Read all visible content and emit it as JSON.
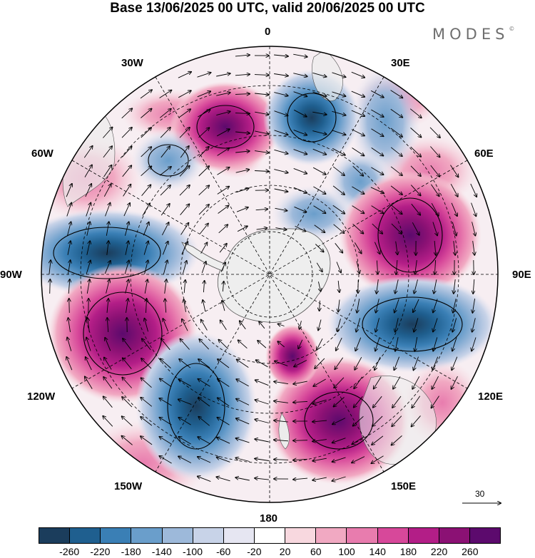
{
  "title": "Base 13/06/2025 00 UTC, valid 20/06/2025 00 UTC",
  "brand": {
    "name": "MODES",
    "mark": "©"
  },
  "longitude_labels": {
    "lon_0": "0",
    "lon_30e": "30E",
    "lon_60e": "60E",
    "lon_90e": "90E",
    "lon_120e": "120E",
    "lon_150e": "150E",
    "lon_180": "180",
    "lon_150w": "150W",
    "lon_120w": "120W",
    "lon_90w": "90W",
    "lon_60w": "60W",
    "lon_30w": "30W"
  },
  "vector_reference": {
    "value": "30"
  },
  "colorbar": {
    "colors": [
      "#1b3d5c",
      "#1f5f8f",
      "#3a7fb5",
      "#6a9ecb",
      "#9db9da",
      "#c8d3e8",
      "#e6e6f2",
      "#ffffff",
      "#f8d8df",
      "#f1a9c2",
      "#e87cae",
      "#d7489a",
      "#b31e87",
      "#8b1174",
      "#5c0a6d"
    ],
    "tick_labels": [
      "-260",
      "-220",
      "-180",
      "-140",
      "-100",
      "-60",
      "-20",
      "20",
      "60",
      "100",
      "140",
      "180",
      "220",
      "260"
    ]
  },
  "map": {
    "projection": "south polar stereographic",
    "features": [
      "geopotential height anomaly shading",
      "wind vectors",
      "coastlines",
      "lat/lon dashed grid"
    ],
    "anomaly_centers": [
      {
        "sign": "positive",
        "near": "40W",
        "strength": "strong"
      },
      {
        "sign": "negative",
        "near": "10E",
        "strength": "moderate"
      },
      {
        "sign": "negative",
        "near": "40W-50W inner",
        "strength": "weak"
      },
      {
        "sign": "negative",
        "near": "50E",
        "strength": "weak"
      },
      {
        "sign": "positive",
        "near": "70E",
        "strength": "strong"
      },
      {
        "sign": "negative",
        "near": "90W",
        "strength": "strong"
      },
      {
        "sign": "negative",
        "near": "100E",
        "strength": "strong"
      },
      {
        "sign": "positive",
        "near": "110W",
        "strength": "strong"
      },
      {
        "sign": "negative",
        "near": "140W",
        "strength": "strong"
      },
      {
        "sign": "positive",
        "near": "160E",
        "strength": "moderate"
      },
      {
        "sign": "positive",
        "near": "120E outer",
        "strength": "weak"
      }
    ]
  }
}
